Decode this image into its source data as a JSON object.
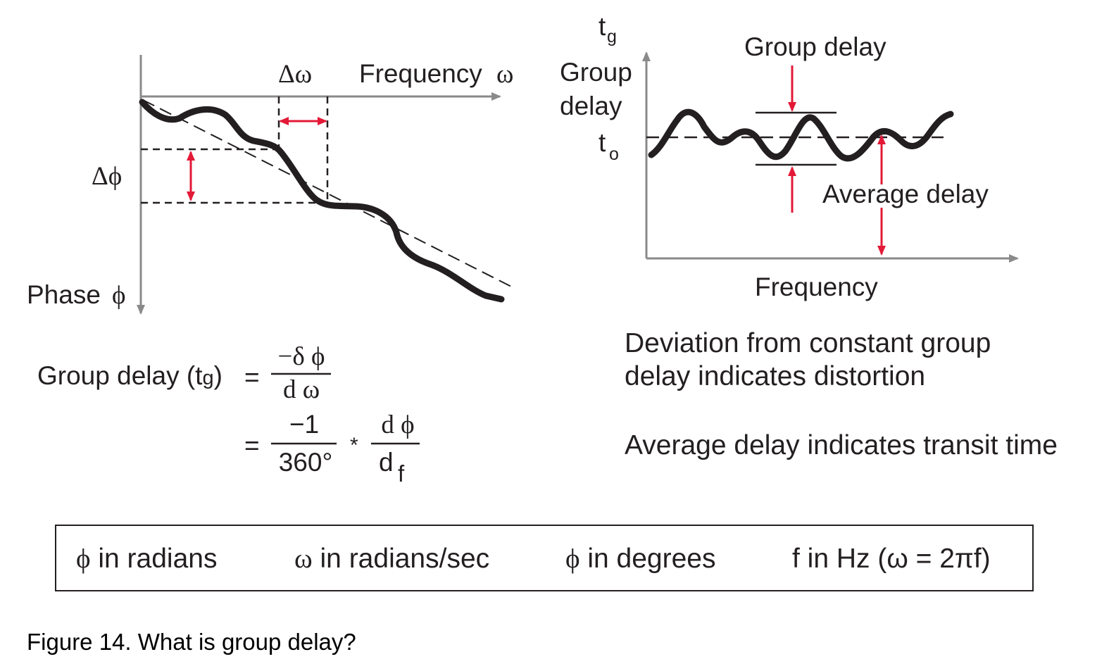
{
  "left_diagram": {
    "freq_label": "Frequency",
    "omega_sym": "ω",
    "delta_omega": "Δω",
    "delta_phi": "Δϕ",
    "phase_label": "Phase",
    "phi_sym": "ϕ"
  },
  "right_diagram": {
    "tg_t": "t",
    "tg_sub": "g",
    "axis_group": "Group",
    "axis_delay": "delay",
    "to_t": "t",
    "to_sub": "o",
    "group_delay_label": "Group delay",
    "average_delay_label": "Average delay",
    "x_label": "Frequency"
  },
  "formula": {
    "lhs_text": "Group delay (t",
    "lhs_sub": "g",
    "lhs_close": ")",
    "eq1": "=",
    "num1": "−δ ϕ",
    "den1": "d ω",
    "eq2": "=",
    "num2": "−1",
    "den2": "360°",
    "times": "*",
    "num3": "d ϕ",
    "den3_d": "d",
    "den3_f": "f"
  },
  "notes": {
    "line1": "Deviation from constant group",
    "line2": "delay indicates distortion",
    "line3": "Average delay indicates transit time"
  },
  "units": [
    {
      "sym": "ϕ",
      "text": " in radians"
    },
    {
      "sym": "ω",
      "text": " in radians/sec"
    },
    {
      "sym": "ϕ",
      "text": " in degrees"
    },
    {
      "sym": "",
      "text": "f in Hz (ω = 2πf)"
    }
  ],
  "caption": "Figure 14. What is group delay?",
  "colors": {
    "ink": "#231f20",
    "axis": "#8a8a8a",
    "accent": "#e31937"
  }
}
